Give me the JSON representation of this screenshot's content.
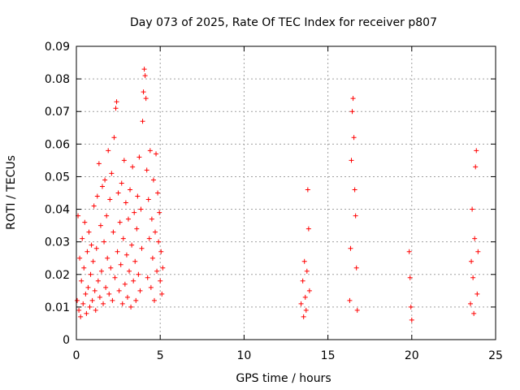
{
  "chart_data": {
    "type": "scatter",
    "title": "Day 073 of 2025, Rate Of TEC Index for receiver p807",
    "xlabel": "GPS time / hours",
    "ylabel": "ROTI / TECUs",
    "xlim": [
      0,
      25
    ],
    "ylim": [
      0,
      0.09
    ],
    "xticks": [
      0,
      5,
      10,
      15,
      20,
      25
    ],
    "xtick_labels": [
      "0",
      "5",
      "10",
      "15",
      "20",
      "25"
    ],
    "yticks": [
      0,
      0.01,
      0.02,
      0.03,
      0.04,
      0.05,
      0.06,
      0.07,
      0.08,
      0.09
    ],
    "ytick_labels": [
      "0",
      "0.01",
      "0.02",
      "0.03",
      "0.04",
      "0.05",
      "0.06",
      "0.07",
      "0.08",
      "0.09"
    ],
    "grid": true,
    "marker": "+",
    "color": "#ff0000",
    "series": [
      {
        "points": [
          [
            0.05,
            0.012
          ],
          [
            0.1,
            0.038
          ],
          [
            0.15,
            0.009
          ],
          [
            0.2,
            0.025
          ],
          [
            0.25,
            0.007
          ],
          [
            0.3,
            0.018
          ],
          [
            0.35,
            0.031
          ],
          [
            0.4,
            0.011
          ],
          [
            0.45,
            0.022
          ],
          [
            0.5,
            0.036
          ],
          [
            0.55,
            0.014
          ],
          [
            0.6,
            0.008
          ],
          [
            0.65,
            0.027
          ],
          [
            0.7,
            0.016
          ],
          [
            0.75,
            0.033
          ],
          [
            0.8,
            0.01
          ],
          [
            0.85,
            0.02
          ],
          [
            0.9,
            0.029
          ],
          [
            0.95,
            0.012
          ],
          [
            1.0,
            0.024
          ],
          [
            1.05,
            0.041
          ],
          [
            1.1,
            0.015
          ],
          [
            1.15,
            0.009
          ],
          [
            1.2,
            0.028
          ],
          [
            1.25,
            0.044
          ],
          [
            1.3,
            0.018
          ],
          [
            1.35,
            0.054
          ],
          [
            1.4,
            0.013
          ],
          [
            1.45,
            0.035
          ],
          [
            1.5,
            0.021
          ],
          [
            1.55,
            0.047
          ],
          [
            1.6,
            0.011
          ],
          [
            1.65,
            0.03
          ],
          [
            1.7,
            0.049
          ],
          [
            1.75,
            0.016
          ],
          [
            1.8,
            0.038
          ],
          [
            1.85,
            0.025
          ],
          [
            1.9,
            0.058
          ],
          [
            1.95,
            0.014
          ],
          [
            2.0,
            0.043
          ],
          [
            2.05,
            0.022
          ],
          [
            2.1,
            0.051
          ],
          [
            2.15,
            0.012
          ],
          [
            2.2,
            0.033
          ],
          [
            2.25,
            0.062
          ],
          [
            2.3,
            0.019
          ],
          [
            2.35,
            0.071
          ],
          [
            2.4,
            0.073
          ],
          [
            2.45,
            0.027
          ],
          [
            2.5,
            0.045
          ],
          [
            2.55,
            0.015
          ],
          [
            2.6,
            0.036
          ],
          [
            2.65,
            0.023
          ],
          [
            2.7,
            0.048
          ],
          [
            2.75,
            0.011
          ],
          [
            2.8,
            0.031
          ],
          [
            2.85,
            0.055
          ],
          [
            2.9,
            0.017
          ],
          [
            2.95,
            0.042
          ],
          [
            3.0,
            0.026
          ],
          [
            3.05,
            0.013
          ],
          [
            3.1,
            0.037
          ],
          [
            3.15,
            0.021
          ],
          [
            3.2,
            0.046
          ],
          [
            3.25,
            0.01
          ],
          [
            3.3,
            0.029
          ],
          [
            3.35,
            0.053
          ],
          [
            3.4,
            0.018
          ],
          [
            3.45,
            0.039
          ],
          [
            3.5,
            0.024
          ],
          [
            3.55,
            0.012
          ],
          [
            3.6,
            0.034
          ],
          [
            3.65,
            0.044
          ],
          [
            3.7,
            0.02
          ],
          [
            3.75,
            0.056
          ],
          [
            3.8,
            0.015
          ],
          [
            3.85,
            0.04
          ],
          [
            3.9,
            0.028
          ],
          [
            3.95,
            0.067
          ],
          [
            4.0,
            0.076
          ],
          [
            4.05,
            0.083
          ],
          [
            4.1,
            0.081
          ],
          [
            4.15,
            0.074
          ],
          [
            4.2,
            0.052
          ],
          [
            4.25,
            0.019
          ],
          [
            4.3,
            0.043
          ],
          [
            4.35,
            0.031
          ],
          [
            4.4,
            0.058
          ],
          [
            4.45,
            0.016
          ],
          [
            4.5,
            0.037
          ],
          [
            4.55,
            0.025
          ],
          [
            4.6,
            0.049
          ],
          [
            4.65,
            0.012
          ],
          [
            4.7,
            0.033
          ],
          [
            4.75,
            0.057
          ],
          [
            4.8,
            0.021
          ],
          [
            4.85,
            0.045
          ],
          [
            4.9,
            0.03
          ],
          [
            4.95,
            0.039
          ],
          [
            5.0,
            0.018
          ],
          [
            5.05,
            0.027
          ],
          [
            5.1,
            0.014
          ],
          [
            5.15,
            0.022
          ],
          [
            13.4,
            0.011
          ],
          [
            13.5,
            0.018
          ],
          [
            13.55,
            0.007
          ],
          [
            13.6,
            0.024
          ],
          [
            13.65,
            0.013
          ],
          [
            13.7,
            0.009
          ],
          [
            13.75,
            0.021
          ],
          [
            13.8,
            0.046
          ],
          [
            13.85,
            0.034
          ],
          [
            13.9,
            0.015
          ],
          [
            16.3,
            0.012
          ],
          [
            16.35,
            0.028
          ],
          [
            16.4,
            0.055
          ],
          [
            16.45,
            0.07
          ],
          [
            16.5,
            0.074
          ],
          [
            16.55,
            0.062
          ],
          [
            16.6,
            0.046
          ],
          [
            16.65,
            0.038
          ],
          [
            16.7,
            0.022
          ],
          [
            16.75,
            0.009
          ],
          [
            19.85,
            0.027
          ],
          [
            19.9,
            0.019
          ],
          [
            19.95,
            0.01
          ],
          [
            20.0,
            0.006
          ],
          [
            23.5,
            0.011
          ],
          [
            23.55,
            0.024
          ],
          [
            23.6,
            0.04
          ],
          [
            23.65,
            0.019
          ],
          [
            23.7,
            0.008
          ],
          [
            23.75,
            0.031
          ],
          [
            23.8,
            0.053
          ],
          [
            23.85,
            0.058
          ],
          [
            23.9,
            0.014
          ],
          [
            23.95,
            0.027
          ]
        ]
      }
    ]
  }
}
